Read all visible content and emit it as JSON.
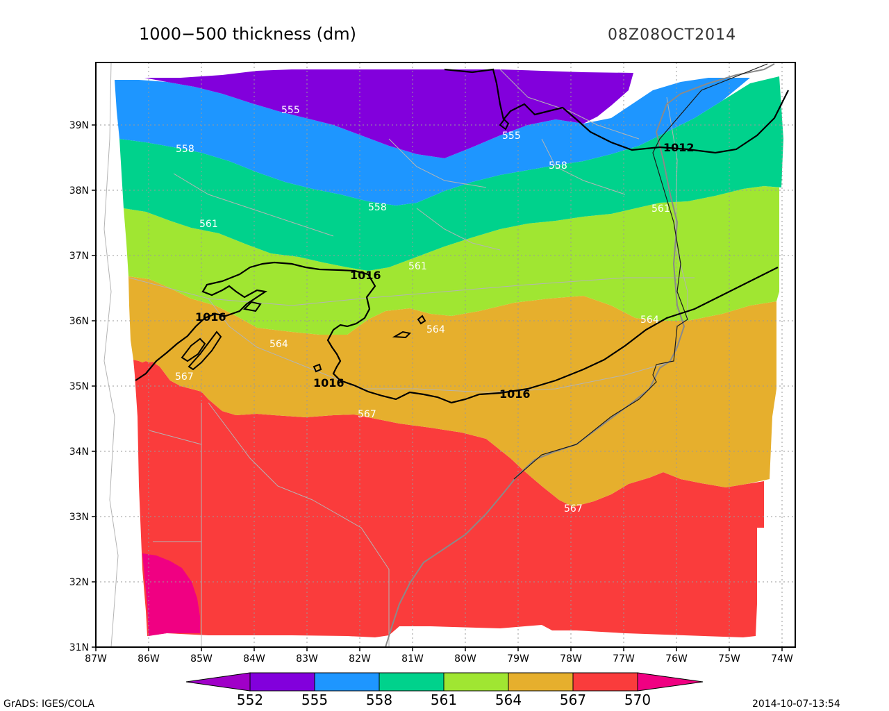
{
  "title": "1000−500 thickness (dm)",
  "valid_time": "08Z08OCT2014",
  "footer": {
    "left": "GrADS: IGES/COLA",
    "right": "2014-10-07-13:54"
  },
  "map": {
    "lon_range": [
      -87,
      -74
    ],
    "lat_range": [
      31,
      39
    ],
    "x_ticks": [
      "87W",
      "86W",
      "85W",
      "84W",
      "83W",
      "82W",
      "81W",
      "80W",
      "79W",
      "78W",
      "77W",
      "76W",
      "75W",
      "74W"
    ],
    "y_ticks": [
      "31N",
      "32N",
      "33N",
      "34N",
      "35N",
      "36N",
      "37N",
      "38N",
      "39N"
    ],
    "gridlines": "dotted"
  },
  "colorbar": {
    "levels": [
      "552",
      "555",
      "558",
      "561",
      "564",
      "567",
      "570"
    ],
    "colors": [
      "#a000c8",
      "#8200dc",
      "#1e96ff",
      "#00d28c",
      "#a0e632",
      "#e6af2d",
      "#fa3c3c",
      "#f00082"
    ]
  },
  "thickness_labels": [
    {
      "text": "555"
    },
    {
      "text": "555"
    },
    {
      "text": "558"
    },
    {
      "text": "558"
    },
    {
      "text": "558"
    },
    {
      "text": "561"
    },
    {
      "text": "561"
    },
    {
      "text": "561"
    },
    {
      "text": "564"
    },
    {
      "text": "564"
    },
    {
      "text": "564"
    },
    {
      "text": "567"
    },
    {
      "text": "567"
    },
    {
      "text": "567"
    }
  ],
  "pressure_labels": [
    {
      "text": "1012"
    },
    {
      "text": "1016"
    },
    {
      "text": "1016"
    },
    {
      "text": "1016"
    },
    {
      "text": "1016"
    }
  ]
}
